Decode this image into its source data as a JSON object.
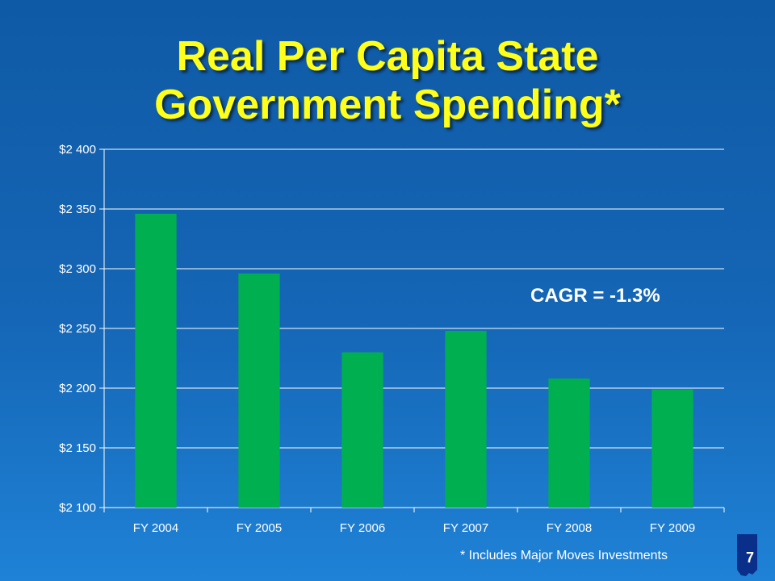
{
  "title": {
    "line1": "Real Per Capita State",
    "line2": "Government Spending*"
  },
  "annotation": "CAGR = -1.3%",
  "footnote": "* Includes Major Moves Investments",
  "slide_number": "7",
  "colors": {
    "bar": "#00b050",
    "title": "#ffff1a",
    "background": "#1566b6",
    "gridline": "#ffffff"
  },
  "chart_data": {
    "type": "bar",
    "categories": [
      "FY 2004",
      "FY 2005",
      "FY 2006",
      "FY 2007",
      "FY 2008",
      "FY 2009"
    ],
    "values": [
      2346,
      2296,
      2230,
      2248,
      2208,
      2199
    ],
    "ylim": [
      2100,
      2400
    ],
    "yticks": [
      2100,
      2150,
      2200,
      2250,
      2300,
      2350,
      2400
    ],
    "ytick_labels": [
      "$2 100",
      "$2 150",
      "$2 200",
      "$2 250",
      "$2 300",
      "$2 350",
      "$2 400"
    ],
    "grid": true,
    "xlabel": "",
    "ylabel": ""
  }
}
